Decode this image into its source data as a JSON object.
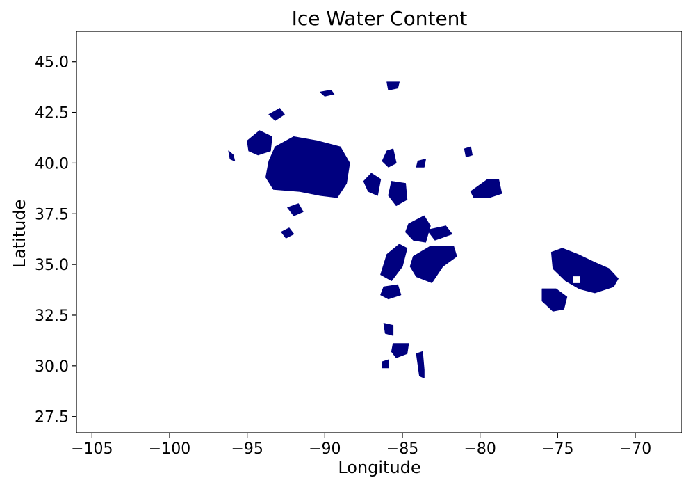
{
  "chart_data": {
    "type": "map-filled-contour",
    "title": "Ice Water Content",
    "xlabel": "Longitude",
    "ylabel": "Latitude",
    "xlim": [
      -106.0,
      -67.0
    ],
    "ylim": [
      26.7,
      46.5
    ],
    "xticks": [
      -105,
      -100,
      -95,
      -90,
      -85,
      -80,
      -75,
      -70
    ],
    "yticks": [
      27.5,
      30.0,
      32.5,
      35.0,
      37.5,
      40.0,
      42.5,
      45.0
    ],
    "xtick_labels": [
      "−105",
      "−100",
      "−95",
      "−90",
      "−85",
      "−80",
      "−75",
      "−70"
    ],
    "ytick_labels": [
      "27.5",
      "30.0",
      "32.5",
      "35.0",
      "37.5",
      "40.0",
      "42.5",
      "45.0"
    ],
    "grid": false,
    "legend": false,
    "fill_color": "#00007f",
    "regions": [
      {
        "name": "ohio-valley-main",
        "points": [
          [
            -93.2,
            40.8
          ],
          [
            -92.0,
            41.3
          ],
          [
            -90.5,
            41.1
          ],
          [
            -89.0,
            40.8
          ],
          [
            -88.4,
            40.0
          ],
          [
            -88.6,
            39.0
          ],
          [
            -89.2,
            38.3
          ],
          [
            -90.3,
            38.4
          ],
          [
            -91.6,
            38.6
          ],
          [
            -93.3,
            38.7
          ],
          [
            -93.8,
            39.3
          ],
          [
            -93.6,
            40.1
          ]
        ]
      },
      {
        "name": "iowa-northwest",
        "points": [
          [
            -95.0,
            41.1
          ],
          [
            -94.2,
            41.6
          ],
          [
            -93.4,
            41.3
          ],
          [
            -93.5,
            40.6
          ],
          [
            -94.3,
            40.4
          ],
          [
            -94.9,
            40.6
          ]
        ]
      },
      {
        "name": "minnesota-streak",
        "points": [
          [
            -93.6,
            42.4
          ],
          [
            -92.9,
            42.7
          ],
          [
            -92.6,
            42.4
          ],
          [
            -93.2,
            42.1
          ]
        ]
      },
      {
        "name": "nebraska-edge",
        "points": [
          [
            -96.2,
            40.6
          ],
          [
            -95.9,
            40.4
          ],
          [
            -95.8,
            40.1
          ],
          [
            -96.1,
            40.2
          ]
        ]
      },
      {
        "name": "missouri-south-patch",
        "points": [
          [
            -92.4,
            37.8
          ],
          [
            -91.7,
            38.0
          ],
          [
            -91.4,
            37.6
          ],
          [
            -92.0,
            37.4
          ]
        ]
      },
      {
        "name": "arkansas-north-flecks",
        "points": [
          [
            -92.8,
            36.6
          ],
          [
            -92.3,
            36.8
          ],
          [
            -92.0,
            36.5
          ],
          [
            -92.5,
            36.3
          ]
        ]
      },
      {
        "name": "lake-michigan-fleck",
        "points": [
          [
            -90.3,
            43.5
          ],
          [
            -89.6,
            43.6
          ],
          [
            -89.4,
            43.4
          ],
          [
            -90.0,
            43.3
          ]
        ]
      },
      {
        "name": "michigan-top",
        "points": [
          [
            -86.0,
            44.0
          ],
          [
            -85.2,
            44.0
          ],
          [
            -85.3,
            43.7
          ],
          [
            -85.9,
            43.6
          ]
        ]
      },
      {
        "name": "indiana-cell",
        "points": [
          [
            -87.0,
            39.5
          ],
          [
            -86.4,
            39.2
          ],
          [
            -86.6,
            38.4
          ],
          [
            -87.2,
            38.6
          ],
          [
            -87.5,
            39.1
          ]
        ]
      },
      {
        "name": "indiana-north",
        "points": [
          [
            -86.0,
            40.6
          ],
          [
            -85.6,
            40.7
          ],
          [
            -85.4,
            40.0
          ],
          [
            -85.9,
            39.8
          ],
          [
            -86.3,
            40.1
          ]
        ]
      },
      {
        "name": "kentucky-cell",
        "points": [
          [
            -85.7,
            39.1
          ],
          [
            -84.8,
            39.0
          ],
          [
            -84.7,
            38.2
          ],
          [
            -85.4,
            37.9
          ],
          [
            -85.9,
            38.4
          ]
        ]
      },
      {
        "name": "ohio-east-fleck",
        "points": [
          [
            -84.0,
            40.1
          ],
          [
            -83.5,
            40.2
          ],
          [
            -83.6,
            39.8
          ],
          [
            -84.1,
            39.8
          ]
        ]
      },
      {
        "name": "west-virginia-specks",
        "points": [
          [
            -81.0,
            40.7
          ],
          [
            -80.6,
            40.8
          ],
          [
            -80.5,
            40.4
          ],
          [
            -80.9,
            40.3
          ]
        ]
      },
      {
        "name": "virginia-band",
        "points": [
          [
            -80.6,
            38.6
          ],
          [
            -79.5,
            39.2
          ],
          [
            -78.8,
            39.2
          ],
          [
            -78.6,
            38.5
          ],
          [
            -79.4,
            38.3
          ],
          [
            -80.4,
            38.3
          ]
        ]
      },
      {
        "name": "tennessee-cell-west",
        "points": [
          [
            -86.0,
            35.5
          ],
          [
            -85.2,
            36.0
          ],
          [
            -84.7,
            35.8
          ],
          [
            -85.0,
            34.9
          ],
          [
            -85.7,
            34.2
          ],
          [
            -86.4,
            34.5
          ]
        ]
      },
      {
        "name": "tennessee-cell-center",
        "points": [
          [
            -84.6,
            37.0
          ],
          [
            -83.6,
            37.4
          ],
          [
            -83.2,
            36.9
          ],
          [
            -83.5,
            36.1
          ],
          [
            -84.3,
            36.2
          ],
          [
            -84.8,
            36.6
          ]
        ]
      },
      {
        "name": "carolina-cell-main",
        "points": [
          [
            -84.3,
            35.4
          ],
          [
            -83.2,
            35.9
          ],
          [
            -81.7,
            35.9
          ],
          [
            -81.5,
            35.4
          ],
          [
            -82.4,
            34.9
          ],
          [
            -83.1,
            34.1
          ],
          [
            -84.1,
            34.4
          ],
          [
            -84.5,
            34.9
          ]
        ]
      },
      {
        "name": "carolina-north-streak",
        "points": [
          [
            -83.4,
            36.7
          ],
          [
            -82.2,
            36.9
          ],
          [
            -81.8,
            36.5
          ],
          [
            -82.9,
            36.2
          ]
        ]
      },
      {
        "name": "alabama-specks",
        "points": [
          [
            -86.2,
            33.9
          ],
          [
            -85.3,
            34.0
          ],
          [
            -85.1,
            33.5
          ],
          [
            -85.9,
            33.3
          ],
          [
            -86.4,
            33.5
          ]
        ]
      },
      {
        "name": "gulf-coast-cell",
        "points": [
          [
            -86.2,
            32.1
          ],
          [
            -85.6,
            32.0
          ],
          [
            -85.6,
            31.5
          ],
          [
            -86.1,
            31.6
          ]
        ]
      },
      {
        "name": "florida-panhandle-cell",
        "points": [
          [
            -85.6,
            31.1
          ],
          [
            -84.6,
            31.1
          ],
          [
            -84.7,
            30.6
          ],
          [
            -85.4,
            30.4
          ],
          [
            -85.7,
            30.7
          ]
        ]
      },
      {
        "name": "florida-coast-streak",
        "points": [
          [
            -84.1,
            30.6
          ],
          [
            -83.7,
            30.7
          ],
          [
            -83.6,
            29.8
          ],
          [
            -83.6,
            29.4
          ],
          [
            -83.9,
            29.5
          ]
        ]
      },
      {
        "name": "gulf-coast-speck",
        "points": [
          [
            -86.3,
            30.2
          ],
          [
            -85.9,
            30.3
          ],
          [
            -85.9,
            29.9
          ],
          [
            -86.3,
            29.9
          ]
        ]
      },
      {
        "name": "atlantic-large-cell",
        "points": [
          [
            -75.4,
            35.6
          ],
          [
            -74.7,
            35.8
          ],
          [
            -73.7,
            35.5
          ],
          [
            -72.6,
            35.1
          ],
          [
            -71.7,
            34.8
          ],
          [
            -71.1,
            34.3
          ],
          [
            -71.4,
            33.9
          ],
          [
            -72.6,
            33.6
          ],
          [
            -73.6,
            33.8
          ],
          [
            -74.5,
            34.2
          ],
          [
            -75.3,
            34.8
          ]
        ]
      },
      {
        "name": "atlantic-small-cell",
        "points": [
          [
            -76.0,
            33.8
          ],
          [
            -75.1,
            33.8
          ],
          [
            -74.4,
            33.4
          ],
          [
            -74.6,
            32.8
          ],
          [
            -75.3,
            32.7
          ],
          [
            -76.0,
            33.2
          ]
        ]
      }
    ],
    "holes": [
      {
        "name": "atlantic-large-cell-hole",
        "points": [
          [
            -74.0,
            34.4
          ],
          [
            -73.6,
            34.4
          ],
          [
            -73.6,
            34.1
          ],
          [
            -74.0,
            34.1
          ]
        ]
      }
    ]
  }
}
